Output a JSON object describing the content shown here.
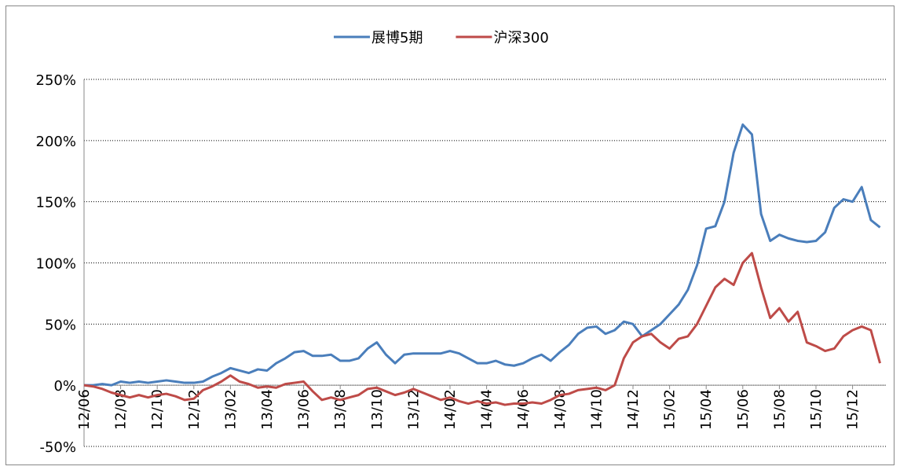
{
  "chart_data": {
    "type": "line",
    "categories": [
      "12/06",
      null,
      null,
      null,
      "12/08",
      null,
      null,
      null,
      "12/10",
      null,
      null,
      null,
      "12/12",
      null,
      null,
      null,
      "13/02",
      null,
      null,
      null,
      "13/04",
      null,
      null,
      null,
      "13/06",
      null,
      null,
      null,
      "13/08",
      null,
      null,
      null,
      "13/10",
      null,
      null,
      null,
      "13/12",
      null,
      null,
      null,
      "14/02",
      null,
      null,
      null,
      "14/04",
      null,
      null,
      null,
      "14/06",
      null,
      null,
      null,
      "14/08",
      null,
      null,
      null,
      "14/10",
      null,
      null,
      null,
      "14/12",
      null,
      null,
      null,
      "15/02",
      null,
      null,
      null,
      "15/04",
      null,
      null,
      null,
      "15/06",
      null,
      null,
      null,
      "15/08",
      null,
      null,
      null,
      "15/10",
      null,
      null,
      null,
      "15/12",
      null,
      null,
      null
    ],
    "series": [
      {
        "name": "展博5期",
        "color": "#4a7ebb",
        "values": [
          0,
          0,
          1,
          0,
          3,
          2,
          3,
          2,
          3,
          4,
          3,
          2,
          2,
          3,
          7,
          10,
          14,
          12,
          10,
          13,
          12,
          18,
          22,
          27,
          28,
          24,
          24,
          25,
          20,
          20,
          22,
          30,
          35,
          25,
          18,
          25,
          26,
          26,
          26,
          26,
          28,
          26,
          22,
          18,
          18,
          20,
          17,
          16,
          18,
          22,
          25,
          20,
          27,
          33,
          42,
          47,
          48,
          42,
          45,
          52,
          50,
          40,
          45,
          50,
          58,
          66,
          78,
          98,
          128,
          130,
          150,
          190,
          213,
          205,
          140,
          118,
          123,
          120,
          118,
          117,
          118,
          125,
          145,
          152,
          150,
          162,
          135,
          129
        ]
      },
      {
        "name": "沪深300",
        "color": "#be4b48",
        "values": [
          0,
          -1,
          -3,
          -6,
          -8,
          -10,
          -8,
          -10,
          -8,
          -7,
          -9,
          -12,
          -11,
          -4,
          -1,
          3,
          8,
          3,
          1,
          -2,
          -1,
          -2,
          1,
          2,
          3,
          -5,
          -12,
          -10,
          -12,
          -10,
          -8,
          -3,
          -2,
          -5,
          -8,
          -6,
          -3,
          -6,
          -9,
          -12,
          -10,
          -13,
          -15,
          -13,
          -15,
          -14,
          -16,
          -15,
          -15,
          -14,
          -15,
          -12,
          -8,
          -7,
          -4,
          -3,
          -2,
          -4,
          0,
          22,
          35,
          40,
          42,
          35,
          30,
          38,
          40,
          50,
          65,
          80,
          87,
          82,
          100,
          108,
          80,
          55,
          63,
          52,
          60,
          35,
          32,
          28,
          30,
          40,
          45,
          48,
          45,
          18
        ]
      }
    ],
    "ylim": [
      -50,
      250
    ],
    "yticks": [
      {
        "value": -50,
        "label": "-50%"
      },
      {
        "value": 0,
        "label": "0%"
      },
      {
        "value": 50,
        "label": "50%"
      },
      {
        "value": 100,
        "label": "100%"
      },
      {
        "value": 150,
        "label": "150%"
      },
      {
        "value": 200,
        "label": "200%"
      },
      {
        "value": 250,
        "label": "250%"
      }
    ],
    "grid": true
  }
}
